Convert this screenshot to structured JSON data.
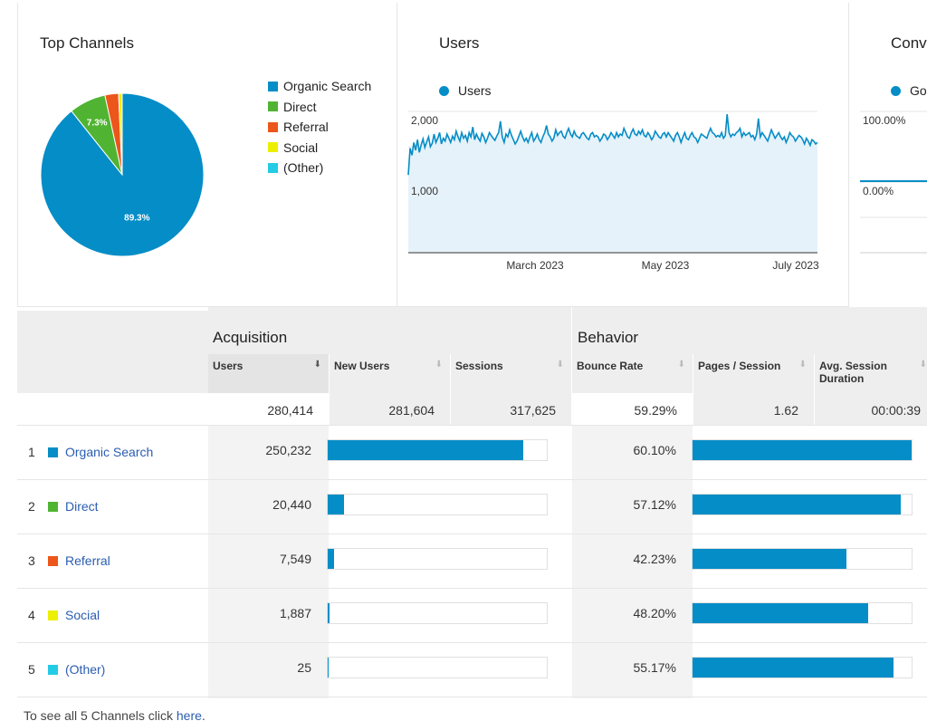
{
  "top_channels": {
    "title": "Top Channels",
    "chart_data": {
      "type": "pie",
      "slices": [
        {
          "name": "Organic Search",
          "value": 89.3,
          "color": "#058dc7"
        },
        {
          "name": "Direct",
          "value": 7.3,
          "color": "#50b432"
        },
        {
          "name": "Referral",
          "value": 2.7,
          "color": "#ed561b"
        },
        {
          "name": "Social",
          "value": 0.7,
          "color": "#edef00"
        },
        {
          "name": "(Other)",
          "value": 0.01,
          "color": "#24cbe5"
        }
      ],
      "labels": [
        "89.3%",
        "7.3%"
      ],
      "legend": "right"
    }
  },
  "users_panel": {
    "title": "Users",
    "legend": "Users",
    "chart_data": {
      "type": "area",
      "series": [
        {
          "name": "Users",
          "color": "#058dc7",
          "values": [
            1100,
            1480,
            1380,
            1560,
            1450,
            1600,
            1420,
            1530,
            1610,
            1490,
            1570,
            1640,
            1500,
            1550,
            1680,
            1560,
            1620,
            1700,
            1540,
            1620,
            1580,
            1680,
            1620,
            1560,
            1650,
            1600,
            1720,
            1640,
            1580,
            1700,
            1620,
            1660,
            1580,
            1700,
            1640,
            1780,
            1600,
            1680,
            1620,
            1580,
            1690,
            1640,
            1560,
            1620,
            1700,
            1660,
            1620,
            1590,
            1650,
            1700,
            1860,
            1640,
            1560,
            1680,
            1640,
            1740,
            1660,
            1600,
            1540,
            1580,
            1650,
            1720,
            1640,
            1580,
            1620,
            1560,
            1640,
            1700,
            1580,
            1620,
            1680,
            1600,
            1560,
            1640,
            1700,
            1800,
            1680,
            1640,
            1580,
            1620,
            1740,
            1660,
            1700,
            1720,
            1650,
            1620,
            1700,
            1760,
            1680,
            1640,
            1720,
            1660,
            1640,
            1620,
            1680,
            1700,
            1660,
            1620,
            1600,
            1680,
            1700,
            1640,
            1660,
            1640,
            1580,
            1620,
            1680,
            1660,
            1600,
            1640,
            1700,
            1660,
            1620,
            1700,
            1640,
            1680,
            1660,
            1760,
            1700,
            1640,
            1620,
            1700,
            1750,
            1680,
            1660,
            1720,
            1680,
            1740,
            1660,
            1640,
            1700,
            1660,
            1600,
            1640,
            1720,
            1680,
            1640,
            1620,
            1680,
            1700,
            1640,
            1700,
            1660,
            1620,
            1580,
            1660,
            1700,
            1640,
            1560,
            1640,
            1700,
            1620,
            1600,
            1660,
            1700,
            1640,
            1620,
            1560,
            1620,
            1680,
            1660,
            1640,
            1620,
            1700,
            1760,
            1700,
            1680,
            1640,
            1660,
            1640,
            1700,
            1620,
            1660,
            1960,
            1700,
            1640,
            1680,
            1660,
            1700,
            1720,
            1760,
            1640,
            1700,
            1660,
            1680,
            1700,
            1640,
            1660,
            1600,
            1680,
            1900,
            1640,
            1700,
            1660,
            1620,
            1580,
            1660,
            1740,
            1680,
            1620,
            1660,
            1700,
            1640,
            1600,
            1640,
            1560,
            1620,
            1700,
            1660,
            1640,
            1580,
            1620,
            1660,
            1640,
            1600,
            1540,
            1620,
            1580,
            1520,
            1600,
            1580,
            1540,
            1560
          ]
        }
      ],
      "ylim": [
        0,
        2000
      ],
      "yticks": [
        "2,000",
        "1,000"
      ],
      "xticks": [
        "March 2023",
        "May 2023",
        "July 2023"
      ]
    }
  },
  "conv_panel": {
    "title": "Conv",
    "legend": "Goa",
    "yticks": [
      "100.00%",
      "0.00%"
    ]
  },
  "table": {
    "acquisition": "Acquisition",
    "behavior": "Behavior",
    "columns": [
      "Users",
      "New Users",
      "Sessions",
      "Bounce Rate",
      "Pages / Session",
      "Avg. Session Duration"
    ],
    "totals": [
      "280,414",
      "281,604",
      "317,625",
      "59.29%",
      "1.62",
      "00:00:39"
    ],
    "rows": [
      {
        "num": "1",
        "name": "Organic Search",
        "color": "#058dc7",
        "users": "250,232",
        "users_frac": 0.893,
        "bounce": "60.10%",
        "bounce_frac": 0.601
      },
      {
        "num": "2",
        "name": "Direct",
        "color": "#50b432",
        "users": "20,440",
        "users_frac": 0.073,
        "bounce": "57.12%",
        "bounce_frac": 0.5712
      },
      {
        "num": "3",
        "name": "Referral",
        "color": "#ed561b",
        "users": "7,549",
        "users_frac": 0.027,
        "bounce": "42.23%",
        "bounce_frac": 0.4223
      },
      {
        "num": "4",
        "name": "Social",
        "color": "#edef00",
        "users": "1,887",
        "users_frac": 0.007,
        "bounce": "48.20%",
        "bounce_frac": 0.482
      },
      {
        "num": "5",
        "name": "(Other)",
        "color": "#24cbe5",
        "users": "25",
        "users_frac": 0.0001,
        "bounce": "55.17%",
        "bounce_frac": 0.5517
      }
    ]
  },
  "footer": {
    "text": "To see all 5 Channels click ",
    "link": "here",
    "end": "."
  }
}
